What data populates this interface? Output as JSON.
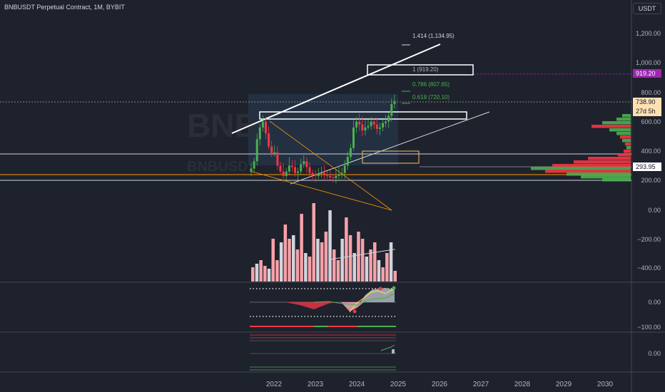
{
  "header": {
    "title": "BNBUSDT Perpetual Contract, 1M, BYBIT",
    "unit": "USDT"
  },
  "watermark": {
    "symbol": "BNB",
    "sub": "BNBUSD"
  },
  "price_axis": [
    "1,200.00",
    "1,000.00",
    "800.00",
    "600.00",
    "400.00",
    "200.00"
  ],
  "osc1_axis": [
    "0.00",
    "−200.00",
    "−400.00"
  ],
  "osc2_axis": [
    "0.00",
    "−100.00"
  ],
  "osc3_axis": [
    "0.00"
  ],
  "time_axis": [
    "2022",
    "2023",
    "2024",
    "2025",
    "2026",
    "2027",
    "2028",
    "2029",
    "2030"
  ],
  "price_tags": {
    "target": "919.20",
    "last": "738.90",
    "countdown": "27d 5h",
    "level": "293.95"
  },
  "fib_labels": {
    "ext": "1.414 (1,134.95)",
    "one": "1 (919.20)",
    "f786": "0.786 (807.65)",
    "f618": "0.618 (720.10)"
  },
  "colors": {
    "background": "#1e222d",
    "up": "#4caf50",
    "down": "#f23645",
    "target_tag": "#9c27b0",
    "last_tag": "#ffe0b2",
    "orange_line": "#ff9800"
  }
}
